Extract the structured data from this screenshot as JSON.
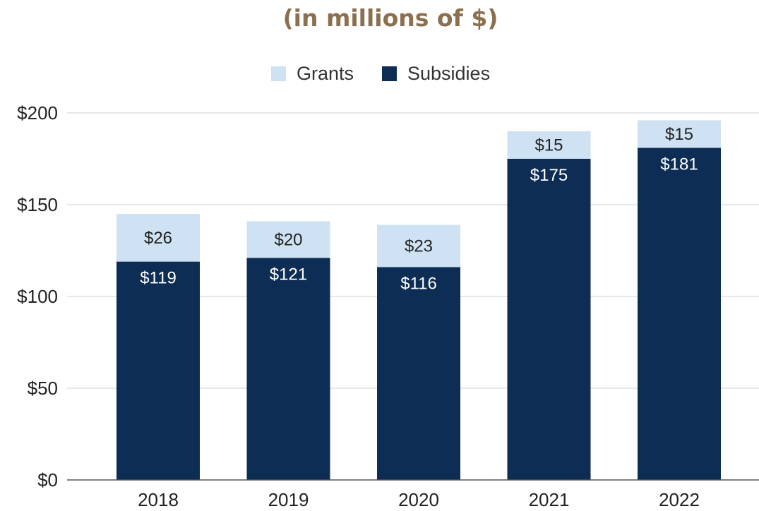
{
  "chart_data": {
    "type": "bar",
    "stacked": true,
    "title": "(in millions of $)",
    "categories": [
      "2018",
      "2019",
      "2020",
      "2021",
      "2022"
    ],
    "series": [
      {
        "name": "Subsidies",
        "color": "#0d2d55",
        "values": [
          119,
          121,
          116,
          175,
          181
        ],
        "labels": [
          "$119",
          "$121",
          "$116",
          "$175",
          "$181"
        ]
      },
      {
        "name": "Grants",
        "color": "#cfe2f3",
        "values": [
          26,
          20,
          23,
          15,
          15
        ],
        "labels": [
          "$26",
          "$20",
          "$23",
          "$15",
          "$15"
        ]
      }
    ],
    "legend_order": [
      "Grants",
      "Subsidies"
    ],
    "legend_position": "top-center",
    "ylim": [
      0,
      200
    ],
    "yticks": [
      0,
      50,
      100,
      150,
      200
    ],
    "ytick_labels": [
      "$0",
      "$50",
      "$100",
      "$150",
      "$200"
    ],
    "grid": true,
    "xlabel": "",
    "ylabel": ""
  }
}
